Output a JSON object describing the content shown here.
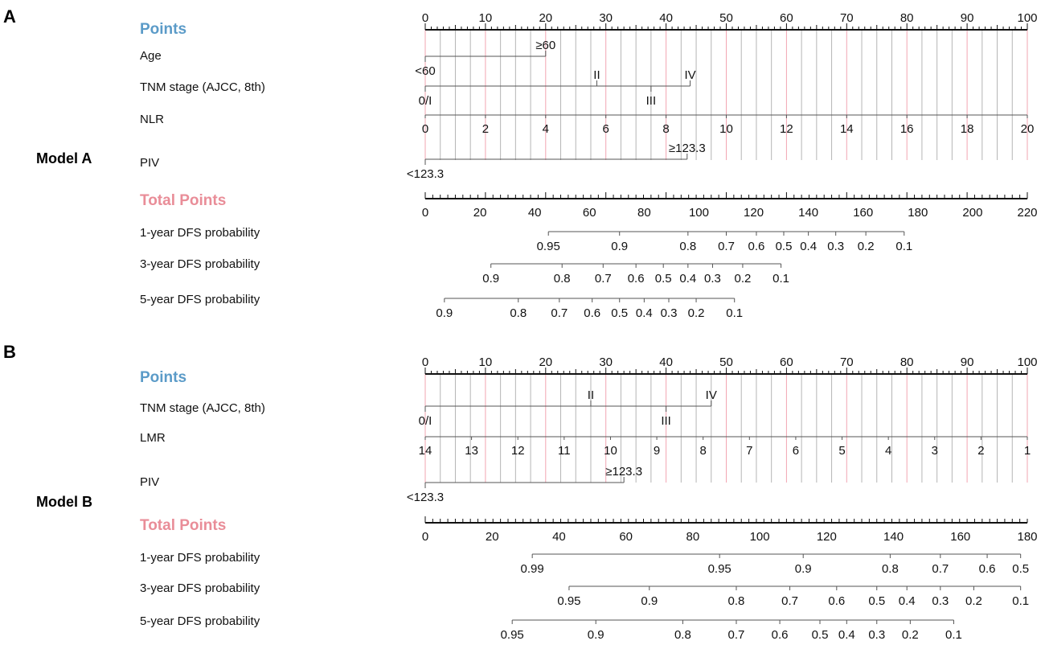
{
  "chart_data": [
    {
      "type": "nomogram",
      "panel": "A",
      "model": "Model A",
      "points_label": "Points",
      "points_ticks": [
        0,
        10,
        20,
        30,
        40,
        50,
        60,
        70,
        80,
        90,
        100
      ],
      "variables": [
        {
          "name": "Age",
          "levels": [
            {
              "label": "<60",
              "points": 0
            },
            {
              "label": "≥60",
              "points": 20
            }
          ]
        },
        {
          "name": "TNM stage (AJCC, 8th)",
          "levels": [
            {
              "label": "0/I",
              "points": 0
            },
            {
              "label": "II",
              "points": 28.5
            },
            {
              "label": "III",
              "points": 37.5
            },
            {
              "label": "IV",
              "points": 44
            }
          ]
        },
        {
          "name": "NLR",
          "continuous": true,
          "points_range": [
            0,
            100
          ],
          "ticks": [
            0,
            2,
            4,
            6,
            8,
            10,
            12,
            14,
            16,
            18,
            20
          ]
        },
        {
          "name": "PIV",
          "levels": [
            {
              "label": "<123.3",
              "points": 0
            },
            {
              "label": "≥123.3",
              "points": 43.5
            }
          ]
        }
      ],
      "total_points_label": "Total Points",
      "total_points_range": [
        0,
        220
      ],
      "total_points_ticks": [
        0,
        20,
        40,
        60,
        80,
        100,
        120,
        140,
        160,
        180,
        200,
        220
      ],
      "outcomes": [
        {
          "name": "1-year DFS probability",
          "ticks": [
            {
              "label": "0.95",
              "total": 45
            },
            {
              "label": "0.9",
              "total": 71
            },
            {
              "label": "0.8",
              "total": 96
            },
            {
              "label": "0.7",
              "total": 110
            },
            {
              "label": "0.6",
              "total": 121
            },
            {
              "label": "0.5",
              "total": 131
            },
            {
              "label": "0.4",
              "total": 140
            },
            {
              "label": "0.3",
              "total": 150
            },
            {
              "label": "0.2",
              "total": 161
            },
            {
              "label": "0.1",
              "total": 175
            }
          ]
        },
        {
          "name": "3-year DFS probability",
          "ticks": [
            {
              "label": "0.9",
              "total": 24
            },
            {
              "label": "0.8",
              "total": 50
            },
            {
              "label": "0.7",
              "total": 65
            },
            {
              "label": "0.6",
              "total": 77
            },
            {
              "label": "0.5",
              "total": 87
            },
            {
              "label": "0.4",
              "total": 96
            },
            {
              "label": "0.3",
              "total": 105
            },
            {
              "label": "0.2",
              "total": 116
            },
            {
              "label": "0.1",
              "total": 130
            }
          ]
        },
        {
          "name": "5-year DFS probability",
          "ticks": [
            {
              "label": "0.9",
              "total": 7
            },
            {
              "label": "0.8",
              "total": 34
            },
            {
              "label": "0.7",
              "total": 49
            },
            {
              "label": "0.6",
              "total": 61
            },
            {
              "label": "0.5",
              "total": 71
            },
            {
              "label": "0.4",
              "total": 80
            },
            {
              "label": "0.3",
              "total": 89
            },
            {
              "label": "0.2",
              "total": 99
            },
            {
              "label": "0.1",
              "total": 113
            }
          ]
        }
      ]
    },
    {
      "type": "nomogram",
      "panel": "B",
      "model": "Model B",
      "points_label": "Points",
      "points_ticks": [
        0,
        10,
        20,
        30,
        40,
        50,
        60,
        70,
        80,
        90,
        100
      ],
      "variables": [
        {
          "name": "TNM stage (AJCC, 8th)",
          "levels": [
            {
              "label": "0/I",
              "points": 0
            },
            {
              "label": "II",
              "points": 27.5
            },
            {
              "label": "III",
              "points": 40
            },
            {
              "label": "IV",
              "points": 47.5
            }
          ]
        },
        {
          "name": "LMR",
          "continuous": true,
          "points_range": [
            0,
            100
          ],
          "ticks": [
            14,
            13,
            12,
            11,
            10,
            9,
            8,
            7,
            6,
            5,
            4,
            3,
            2,
            1
          ]
        },
        {
          "name": "PIV",
          "levels": [
            {
              "label": "<123.3",
              "points": 0
            },
            {
              "label": "≥123.3",
              "points": 33
            }
          ]
        }
      ],
      "total_points_label": "Total Points",
      "total_points_range": [
        0,
        180
      ],
      "total_points_ticks": [
        0,
        20,
        40,
        60,
        80,
        100,
        120,
        140,
        160,
        180
      ],
      "outcomes": [
        {
          "name": "1-year DFS probability",
          "ticks": [
            {
              "label": "0.99",
              "total": 32
            },
            {
              "label": "0.95",
              "total": 88
            },
            {
              "label": "0.9",
              "total": 113
            },
            {
              "label": "0.8",
              "total": 139
            },
            {
              "label": "0.7",
              "total": 154
            },
            {
              "label": "0.6",
              "total": 168
            },
            {
              "label": "0.5",
              "total": 178
            }
          ]
        },
        {
          "name": "3-year DFS probability",
          "ticks": [
            {
              "label": "0.95",
              "total": 43
            },
            {
              "label": "0.9",
              "total": 67
            },
            {
              "label": "0.8",
              "total": 93
            },
            {
              "label": "0.7",
              "total": 109
            },
            {
              "label": "0.6",
              "total": 123
            },
            {
              "label": "0.5",
              "total": 135
            },
            {
              "label": "0.4",
              "total": 144
            },
            {
              "label": "0.3",
              "total": 154
            },
            {
              "label": "0.2",
              "total": 164
            },
            {
              "label": "0.1",
              "total": 178
            }
          ]
        },
        {
          "name": "5-year DFS probability",
          "ticks": [
            {
              "label": "0.95",
              "total": 26
            },
            {
              "label": "0.9",
              "total": 51
            },
            {
              "label": "0.8",
              "total": 77
            },
            {
              "label": "0.7",
              "total": 93
            },
            {
              "label": "0.6",
              "total": 106
            },
            {
              "label": "0.5",
              "total": 118
            },
            {
              "label": "0.4",
              "total": 126
            },
            {
              "label": "0.3",
              "total": 135
            },
            {
              "label": "0.2",
              "total": 145
            },
            {
              "label": "0.1",
              "total": 158
            }
          ]
        }
      ]
    }
  ],
  "colors": {
    "points_label": "#5b9bc8",
    "total_label": "#e98d98",
    "gridline": "#b5b5b5",
    "gridline_major": "#f2a5b2",
    "axis": "#111111"
  }
}
